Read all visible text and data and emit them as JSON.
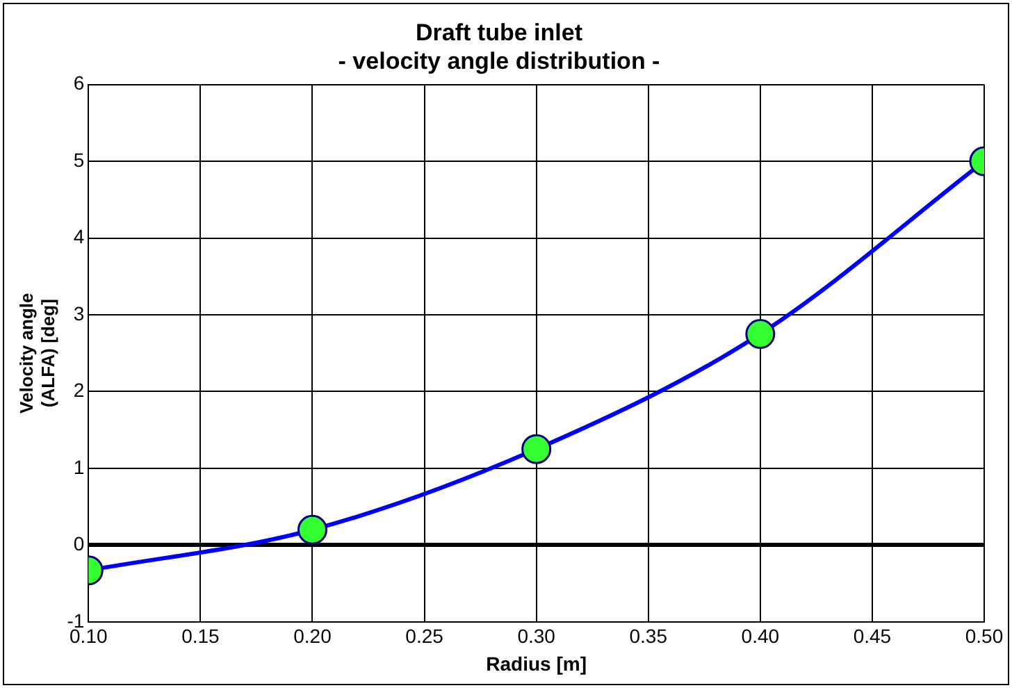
{
  "chart_data": {
    "type": "line",
    "title": [
      "Draft tube inlet",
      "- velocity angle distribution -"
    ],
    "xlabel": "Radius [m]",
    "ylabel": [
      "Velocity angle",
      "(ALFA) [deg]"
    ],
    "x": [
      0.1,
      0.2,
      0.3,
      0.4,
      0.5
    ],
    "series": [
      {
        "color": "#0000ff",
        "values": [
          -0.33,
          0.2,
          1.25,
          2.75,
          5.0
        ]
      }
    ],
    "xlim": [
      0.1,
      0.5
    ],
    "xticks": [
      {
        "value": 0.1,
        "label": "0.10"
      },
      {
        "value": 0.15,
        "label": "0.15"
      },
      {
        "value": 0.2,
        "label": "0.20"
      },
      {
        "value": 0.25,
        "label": "0.25"
      },
      {
        "value": 0.3,
        "label": "0.30"
      },
      {
        "value": 0.35,
        "label": "0.35"
      },
      {
        "value": 0.4,
        "label": "0.40"
      },
      {
        "value": 0.45,
        "label": "0.45"
      },
      {
        "value": 0.5,
        "label": "0.50"
      }
    ],
    "ylim": [
      -1,
      6
    ],
    "yticks": [
      -1,
      0,
      1,
      2,
      3,
      4,
      5,
      6
    ],
    "grid": true,
    "legend": false,
    "marker": "circle",
    "line_style": "solid"
  }
}
